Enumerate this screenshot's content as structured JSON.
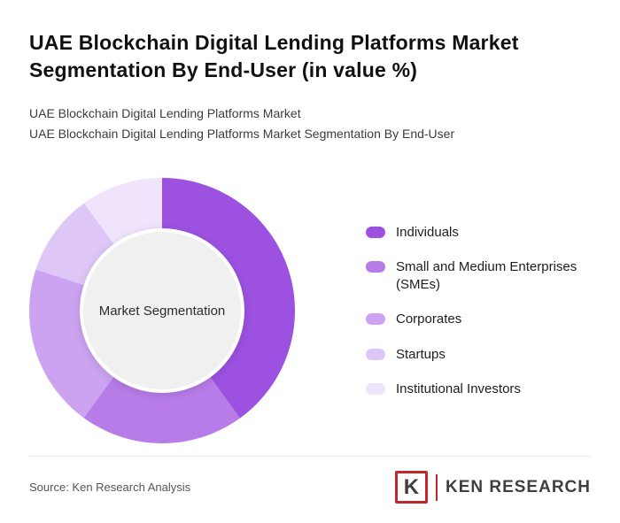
{
  "page": {
    "title": "UAE Blockchain Digital Lending Platforms Market Segmentation By End-User (in value %)",
    "subtitle_line1": "UAE Blockchain Digital Lending Platforms Market",
    "subtitle_line2": "UAE Blockchain Digital Lending Platforms Market Segmentation By End-User",
    "source": "Source: Ken Research Analysis",
    "logo_letter": "K",
    "logo_text": "KEN RESEARCH",
    "brand_red": "#c0272d"
  },
  "chart_data": {
    "type": "pie",
    "donut": true,
    "title": "UAE Blockchain Digital Lending Platforms Market Segmentation By End-User (in value %)",
    "center_label": "Market Segmentation",
    "categories": [
      "Individuals",
      "Small and Medium Enterprises (SMEs)",
      "Corporates",
      "Startups",
      "Institutional Investors"
    ],
    "values": [
      40,
      20,
      20,
      10,
      10
    ],
    "colors": [
      "#9c51e0",
      "#b77ce8",
      "#cba3f0",
      "#dec6f7",
      "#f0e3fc"
    ],
    "legend_position": "right",
    "start_angle_deg": 0,
    "center_fill": "#f0f0f0"
  }
}
